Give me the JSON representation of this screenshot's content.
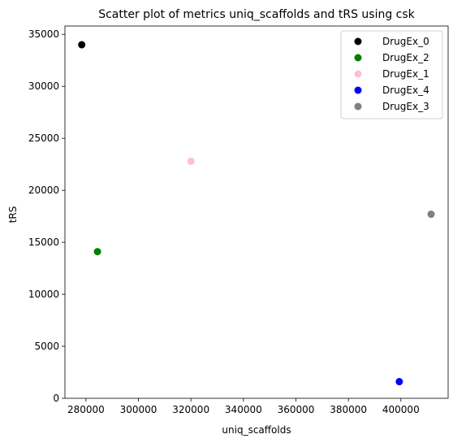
{
  "chart_data": {
    "type": "scatter",
    "title": "Scatter plot of metrics uniq_scaffolds and tRS using csk",
    "xlabel": "uniq_scaffolds",
    "ylabel": "tRS",
    "xlim": [
      272000,
      418000
    ],
    "ylim": [
      0,
      35800
    ],
    "xticks": [
      280000,
      300000,
      320000,
      340000,
      360000,
      380000,
      400000
    ],
    "yticks": [
      0,
      5000,
      10000,
      15000,
      20000,
      25000,
      30000,
      35000
    ],
    "grid": false,
    "legend_position": "top-right",
    "series": [
      {
        "name": "DrugEx_0",
        "color": "#000000",
        "x": 278400,
        "y": 34000
      },
      {
        "name": "DrugEx_2",
        "color": "#008000",
        "x": 284400,
        "y": 14100
      },
      {
        "name": "DrugEx_1",
        "color": "#ffc0cb",
        "x": 320000,
        "y": 22800
      },
      {
        "name": "DrugEx_4",
        "color": "#0000ff",
        "x": 399400,
        "y": 1600
      },
      {
        "name": "DrugEx_3",
        "color": "#808080",
        "x": 411500,
        "y": 17700
      }
    ]
  }
}
